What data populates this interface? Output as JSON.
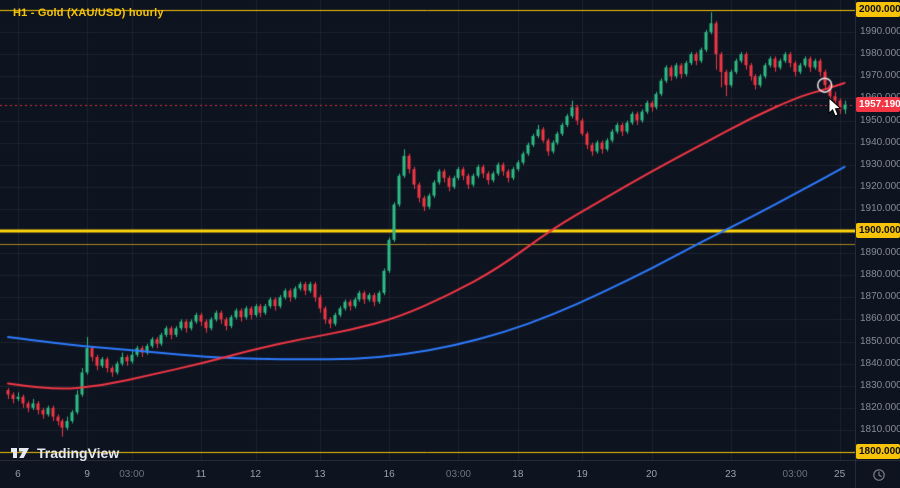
{
  "header": {
    "title": "H1 - Gold (XAU/USD) hourly"
  },
  "watermark": {
    "brand": "TradingView"
  },
  "colors": {
    "background": "#0d131f",
    "grid": "#1c2330",
    "up": "#2ebd85",
    "down": "#f23645",
    "ma_fast": "#f23645",
    "ma_slow": "#2e7bff",
    "level_yellow": "#f6c309",
    "title": "#f6c309",
    "axis_text": "#868b98"
  },
  "price_axis": {
    "ticks": [
      {
        "price": 2000,
        "label": "2000.000",
        "highlight": "yellow"
      },
      {
        "price": 1990,
        "label": "1990.000"
      },
      {
        "price": 1980,
        "label": "1980.000"
      },
      {
        "price": 1970,
        "label": "1970.000"
      },
      {
        "price": 1960,
        "label": "1960.000"
      },
      {
        "price": 1950,
        "label": "1950.000"
      },
      {
        "price": 1940,
        "label": "1940.000"
      },
      {
        "price": 1930,
        "label": "1930.000"
      },
      {
        "price": 1920,
        "label": "1920.000"
      },
      {
        "price": 1910,
        "label": "1910.000"
      },
      {
        "price": 1900,
        "label": "1900.000",
        "highlight": "yellow"
      },
      {
        "price": 1890,
        "label": "1890.000"
      },
      {
        "price": 1880,
        "label": "1880.000"
      },
      {
        "price": 1870,
        "label": "1870.000"
      },
      {
        "price": 1860,
        "label": "1860.000"
      },
      {
        "price": 1850,
        "label": "1850.000"
      },
      {
        "price": 1840,
        "label": "1840.000"
      },
      {
        "price": 1830,
        "label": "1830.000"
      },
      {
        "price": 1820,
        "label": "1820.000"
      },
      {
        "price": 1810,
        "label": "1810.000"
      },
      {
        "price": 1800,
        "label": "1800.000",
        "highlight": "yellow"
      }
    ],
    "last_price": {
      "label": "1957.190",
      "price": 1957.19
    }
  },
  "time_axis": {
    "ticks": [
      {
        "i": 2,
        "label": "6",
        "major": true
      },
      {
        "i": 16,
        "label": "9",
        "major": true
      },
      {
        "i": 25,
        "label": "03:00",
        "major": false
      },
      {
        "i": 39,
        "label": "11",
        "major": true
      },
      {
        "i": 50,
        "label": "12",
        "major": true
      },
      {
        "i": 63,
        "label": "13",
        "major": true
      },
      {
        "i": 77,
        "label": "16",
        "major": true
      },
      {
        "i": 91,
        "label": "03:00",
        "major": false
      },
      {
        "i": 103,
        "label": "18",
        "major": true
      },
      {
        "i": 116,
        "label": "19",
        "major": true
      },
      {
        "i": 130,
        "label": "20",
        "major": true
      },
      {
        "i": 146,
        "label": "23",
        "major": true
      },
      {
        "i": 159,
        "label": "03:00",
        "major": false
      },
      {
        "i": 168,
        "label": "25",
        "major": true
      }
    ]
  },
  "chart_data": {
    "type": "candlestick",
    "symbol": "Gold (XAU/USD)",
    "timeframe": "H1",
    "ylim": [
      1800,
      2000
    ],
    "tick_step": 10,
    "candles": [
      [
        1828,
        1829,
        1824,
        1826
      ],
      [
        1826,
        1827,
        1822,
        1824
      ],
      [
        1824,
        1827,
        1823,
        1825
      ],
      [
        1825,
        1826,
        1820,
        1822
      ],
      [
        1822,
        1823,
        1818,
        1820
      ],
      [
        1820,
        1824,
        1819,
        1822
      ],
      [
        1822,
        1823,
        1817,
        1819
      ],
      [
        1819,
        1820,
        1815,
        1817
      ],
      [
        1817,
        1821,
        1816,
        1820
      ],
      [
        1820,
        1821,
        1814,
        1816
      ],
      [
        1816,
        1817,
        1812,
        1814
      ],
      [
        1814,
        1815,
        1807,
        1811
      ],
      [
        1811,
        1816,
        1810,
        1814
      ],
      [
        1814,
        1819,
        1813,
        1818
      ],
      [
        1818,
        1828,
        1817,
        1826
      ],
      [
        1826,
        1838,
        1825,
        1836
      ],
      [
        1836,
        1852,
        1835,
        1847
      ],
      [
        1847,
        1848,
        1841,
        1843
      ],
      [
        1843,
        1844,
        1837,
        1839
      ],
      [
        1839,
        1843,
        1838,
        1842
      ],
      [
        1842,
        1843,
        1836,
        1838
      ],
      [
        1838,
        1839,
        1834,
        1836
      ],
      [
        1836,
        1841,
        1835,
        1840
      ],
      [
        1840,
        1845,
        1839,
        1843
      ],
      [
        1843,
        1844,
        1839,
        1841
      ],
      [
        1841,
        1846,
        1840,
        1844
      ],
      [
        1844,
        1848,
        1843,
        1847
      ],
      [
        1847,
        1848,
        1843,
        1845
      ],
      [
        1845,
        1849,
        1844,
        1848
      ],
      [
        1848,
        1852,
        1847,
        1851
      ],
      [
        1851,
        1852,
        1847,
        1849
      ],
      [
        1849,
        1854,
        1848,
        1853
      ],
      [
        1853,
        1857,
        1852,
        1856
      ],
      [
        1856,
        1857,
        1851,
        1853
      ],
      [
        1853,
        1857,
        1852,
        1856
      ],
      [
        1856,
        1860,
        1855,
        1859
      ],
      [
        1859,
        1860,
        1854,
        1856
      ],
      [
        1856,
        1860,
        1855,
        1859
      ],
      [
        1859,
        1863,
        1858,
        1862
      ],
      [
        1862,
        1863,
        1857,
        1859
      ],
      [
        1859,
        1860,
        1854,
        1856
      ],
      [
        1856,
        1861,
        1855,
        1860
      ],
      [
        1860,
        1864,
        1859,
        1863
      ],
      [
        1863,
        1864,
        1858,
        1860
      ],
      [
        1860,
        1861,
        1855,
        1857
      ],
      [
        1857,
        1862,
        1856,
        1861
      ],
      [
        1861,
        1865,
        1860,
        1864
      ],
      [
        1864,
        1865,
        1859,
        1861
      ],
      [
        1861,
        1866,
        1860,
        1865
      ],
      [
        1865,
        1866,
        1860,
        1862
      ],
      [
        1862,
        1867,
        1861,
        1866
      ],
      [
        1866,
        1867,
        1861,
        1863
      ],
      [
        1863,
        1867,
        1862,
        1866
      ],
      [
        1866,
        1870,
        1865,
        1869
      ],
      [
        1869,
        1870,
        1864,
        1866
      ],
      [
        1866,
        1871,
        1865,
        1870
      ],
      [
        1870,
        1874,
        1869,
        1873
      ],
      [
        1873,
        1874,
        1868,
        1870
      ],
      [
        1870,
        1875,
        1869,
        1874
      ],
      [
        1874,
        1877,
        1873,
        1876
      ],
      [
        1876,
        1877,
        1871,
        1873
      ],
      [
        1873,
        1877,
        1872,
        1876
      ],
      [
        1876,
        1877,
        1868,
        1870
      ],
      [
        1870,
        1871,
        1863,
        1865
      ],
      [
        1865,
        1866,
        1858,
        1860
      ],
      [
        1860,
        1861,
        1856,
        1858
      ],
      [
        1858,
        1863,
        1857,
        1862
      ],
      [
        1862,
        1866,
        1861,
        1865
      ],
      [
        1865,
        1869,
        1864,
        1868
      ],
      [
        1868,
        1869,
        1864,
        1866
      ],
      [
        1866,
        1870,
        1865,
        1869
      ],
      [
        1869,
        1873,
        1868,
        1872
      ],
      [
        1872,
        1873,
        1867,
        1869
      ],
      [
        1869,
        1872,
        1868,
        1871
      ],
      [
        1871,
        1872,
        1866,
        1868
      ],
      [
        1868,
        1873,
        1867,
        1872
      ],
      [
        1872,
        1883,
        1871,
        1882
      ],
      [
        1882,
        1897,
        1881,
        1896
      ],
      [
        1896,
        1913,
        1895,
        1912
      ],
      [
        1912,
        1926,
        1911,
        1925
      ],
      [
        1925,
        1937,
        1924,
        1934
      ],
      [
        1934,
        1935,
        1926,
        1928
      ],
      [
        1928,
        1929,
        1919,
        1921
      ],
      [
        1921,
        1922,
        1913,
        1915
      ],
      [
        1915,
        1916,
        1909,
        1911
      ],
      [
        1911,
        1917,
        1910,
        1916
      ],
      [
        1916,
        1923,
        1915,
        1922
      ],
      [
        1922,
        1928,
        1921,
        1927
      ],
      [
        1927,
        1928,
        1922,
        1924
      ],
      [
        1924,
        1925,
        1918,
        1920
      ],
      [
        1920,
        1925,
        1919,
        1924
      ],
      [
        1924,
        1929,
        1923,
        1928
      ],
      [
        1928,
        1929,
        1923,
        1925
      ],
      [
        1925,
        1926,
        1919,
        1921
      ],
      [
        1921,
        1926,
        1920,
        1925
      ],
      [
        1925,
        1930,
        1924,
        1929
      ],
      [
        1929,
        1930,
        1924,
        1926
      ],
      [
        1926,
        1927,
        1921,
        1923
      ],
      [
        1923,
        1927,
        1922,
        1926
      ],
      [
        1926,
        1931,
        1925,
        1930
      ],
      [
        1930,
        1931,
        1925,
        1927
      ],
      [
        1927,
        1928,
        1922,
        1924
      ],
      [
        1924,
        1929,
        1923,
        1928
      ],
      [
        1928,
        1932,
        1927,
        1931
      ],
      [
        1931,
        1936,
        1930,
        1935
      ],
      [
        1935,
        1940,
        1934,
        1939
      ],
      [
        1939,
        1944,
        1938,
        1943
      ],
      [
        1943,
        1948,
        1942,
        1946
      ],
      [
        1946,
        1947,
        1940,
        1941
      ],
      [
        1941,
        1942,
        1934,
        1936
      ],
      [
        1936,
        1941,
        1935,
        1940
      ],
      [
        1940,
        1945,
        1939,
        1944
      ],
      [
        1944,
        1949,
        1943,
        1948
      ],
      [
        1948,
        1953,
        1947,
        1952
      ],
      [
        1952,
        1959,
        1951,
        1956
      ],
      [
        1956,
        1957,
        1948,
        1950
      ],
      [
        1950,
        1951,
        1943,
        1944
      ],
      [
        1944,
        1945,
        1937,
        1939
      ],
      [
        1939,
        1940,
        1934,
        1936
      ],
      [
        1936,
        1941,
        1935,
        1940
      ],
      [
        1940,
        1941,
        1935,
        1937
      ],
      [
        1937,
        1942,
        1936,
        1941
      ],
      [
        1941,
        1946,
        1940,
        1945
      ],
      [
        1945,
        1949,
        1944,
        1948
      ],
      [
        1948,
        1949,
        1943,
        1945
      ],
      [
        1945,
        1950,
        1944,
        1949
      ],
      [
        1949,
        1954,
        1948,
        1953
      ],
      [
        1953,
        1954,
        1948,
        1950
      ],
      [
        1950,
        1955,
        1949,
        1954
      ],
      [
        1954,
        1959,
        1953,
        1958
      ],
      [
        1958,
        1959,
        1954,
        1956
      ],
      [
        1956,
        1963,
        1955,
        1962
      ],
      [
        1962,
        1969,
        1961,
        1968
      ],
      [
        1968,
        1975,
        1967,
        1974
      ],
      [
        1974,
        1975,
        1968,
        1970
      ],
      [
        1970,
        1976,
        1969,
        1975
      ],
      [
        1975,
        1976,
        1969,
        1971
      ],
      [
        1971,
        1977,
        1970,
        1976
      ],
      [
        1976,
        1981,
        1975,
        1980
      ],
      [
        1980,
        1981,
        1975,
        1977
      ],
      [
        1977,
        1983,
        1976,
        1982
      ],
      [
        1982,
        1991,
        1981,
        1990
      ],
      [
        1990,
        1999,
        1989,
        1994
      ],
      [
        1994,
        1995,
        1973,
        1980
      ],
      [
        1980,
        1981,
        1965,
        1972
      ],
      [
        1972,
        1973,
        1961,
        1966
      ],
      [
        1966,
        1973,
        1965,
        1972
      ],
      [
        1972,
        1978,
        1971,
        1977
      ],
      [
        1977,
        1981,
        1976,
        1980
      ],
      [
        1980,
        1981,
        1973,
        1975
      ],
      [
        1975,
        1976,
        1968,
        1970
      ],
      [
        1970,
        1971,
        1964,
        1966
      ],
      [
        1966,
        1971,
        1965,
        1970
      ],
      [
        1970,
        1976,
        1969,
        1975
      ],
      [
        1975,
        1979,
        1974,
        1978
      ],
      [
        1978,
        1979,
        1972,
        1974
      ],
      [
        1974,
        1978,
        1973,
        1977
      ],
      [
        1977,
        1981,
        1976,
        1980
      ],
      [
        1980,
        1981,
        1974,
        1976
      ],
      [
        1976,
        1977,
        1970,
        1972
      ],
      [
        1972,
        1976,
        1971,
        1975
      ],
      [
        1975,
        1979,
        1974,
        1978
      ],
      [
        1978,
        1979,
        1972,
        1974
      ],
      [
        1974,
        1978,
        1973,
        1977
      ],
      [
        1977,
        1978,
        1970,
        1972
      ],
      [
        1972,
        1973,
        1964,
        1966
      ],
      [
        1966,
        1967,
        1959,
        1961
      ],
      [
        1961,
        1963,
        1956,
        1959
      ],
      [
        1959,
        1960,
        1953,
        1955
      ],
      [
        1955,
        1959,
        1953,
        1957.19
      ]
    ],
    "overlays": {
      "ma_fast": {
        "name": "red moving average",
        "color": "#f23645",
        "points": [
          [
            0,
            1831
          ],
          [
            9,
            1828
          ],
          [
            19,
            1830
          ],
          [
            29,
            1835
          ],
          [
            39,
            1840
          ],
          [
            49,
            1846
          ],
          [
            59,
            1851
          ],
          [
            69,
            1855
          ],
          [
            79,
            1861
          ],
          [
            89,
            1871
          ],
          [
            99,
            1883
          ],
          [
            110,
            1901
          ],
          [
            120,
            1914
          ],
          [
            130,
            1927
          ],
          [
            140,
            1939
          ],
          [
            150,
            1951
          ],
          [
            160,
            1961
          ],
          [
            165,
            1964
          ],
          [
            169,
            1967
          ]
        ]
      },
      "ma_slow": {
        "name": "blue moving average",
        "color": "#2e7bff",
        "points": [
          [
            0,
            1852
          ],
          [
            10,
            1849
          ],
          [
            20,
            1847
          ],
          [
            30,
            1845
          ],
          [
            40,
            1843
          ],
          [
            50,
            1842
          ],
          [
            60,
            1842
          ],
          [
            70,
            1842
          ],
          [
            80,
            1844
          ],
          [
            90,
            1848
          ],
          [
            100,
            1854
          ],
          [
            110,
            1862
          ],
          [
            120,
            1872
          ],
          [
            130,
            1883
          ],
          [
            140,
            1895
          ],
          [
            150,
            1906
          ],
          [
            160,
            1918
          ],
          [
            169,
            1929
          ]
        ]
      }
    },
    "h_lines": [
      {
        "price": 2000,
        "color": "#f6c309",
        "width": 1
      },
      {
        "price": 1900,
        "color": "#ffd60a",
        "width": 3
      },
      {
        "price": 1894,
        "color": "#a8861d",
        "width": 1
      },
      {
        "price": 1800,
        "color": "#f6c309",
        "width": 1
      }
    ],
    "last_price_line": {
      "price": 1957.19,
      "color": "#f23645",
      "style": "dashed"
    },
    "marker_circle": {
      "i": 165,
      "price": 1966
    },
    "cursor": {
      "x": 828,
      "y": 97
    }
  }
}
